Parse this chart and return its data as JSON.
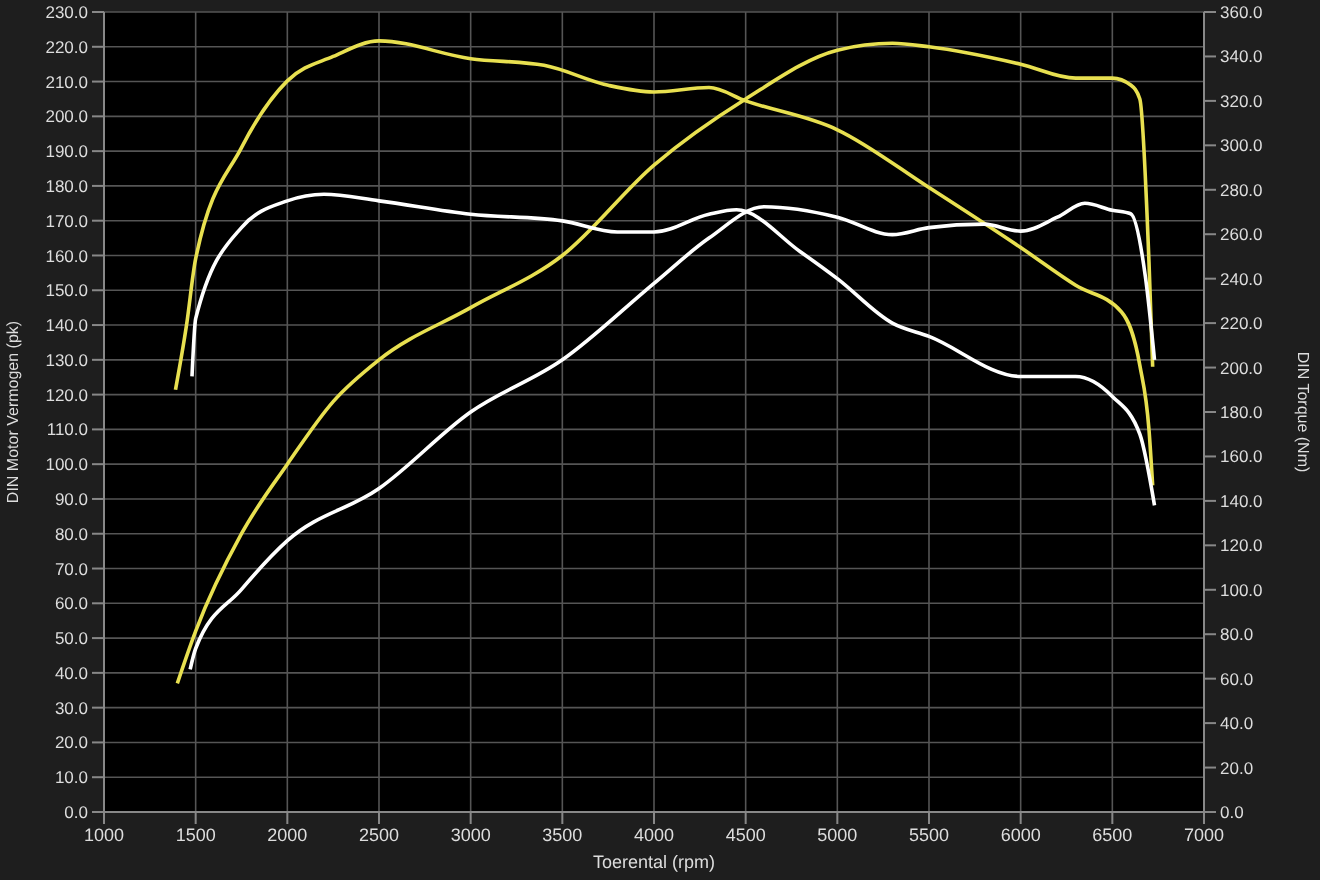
{
  "chart_data": {
    "type": "line",
    "xlabel": "Toerental (rpm)",
    "ylabel": "DIN Motor Vermogen (pk)",
    "y2label": "DIN Torque (Nm)",
    "grid": true,
    "marker": "none",
    "line_style": "solid",
    "xlim": [
      1000,
      7000
    ],
    "xticks": [
      1000,
      1500,
      2000,
      2500,
      3000,
      3500,
      4000,
      4500,
      5000,
      5500,
      6000,
      6500,
      7000
    ],
    "ylim": [
      0,
      230
    ],
    "yticks": [
      {
        "value": 0,
        "label": "0.0"
      },
      {
        "value": 10,
        "label": "10.0"
      },
      {
        "value": 20,
        "label": "20.0"
      },
      {
        "value": 30,
        "label": "30.0"
      },
      {
        "value": 40,
        "label": "40.0"
      },
      {
        "value": 50,
        "label": "50.0"
      },
      {
        "value": 60,
        "label": "60.0"
      },
      {
        "value": 70,
        "label": "70.0"
      },
      {
        "value": 80,
        "label": "80.0"
      },
      {
        "value": 90,
        "label": "90.0"
      },
      {
        "value": 100,
        "label": "100.0"
      },
      {
        "value": 110,
        "label": "110.0"
      },
      {
        "value": 120,
        "label": "120.0"
      },
      {
        "value": 130,
        "label": "130.0"
      },
      {
        "value": 140,
        "label": "140.0"
      },
      {
        "value": 150,
        "label": "150.0"
      },
      {
        "value": 160,
        "label": "160.0"
      },
      {
        "value": 170,
        "label": "170.0"
      },
      {
        "value": 180,
        "label": "180.0"
      },
      {
        "value": 190,
        "label": "190.0"
      },
      {
        "value": 200,
        "label": "200.0"
      },
      {
        "value": 210,
        "label": "210.0"
      },
      {
        "value": 220,
        "label": "220.0"
      },
      {
        "value": 230,
        "label": "230.0"
      }
    ],
    "y2lim": [
      0,
      360
    ],
    "y2ticks": [
      {
        "value": 0,
        "label": "0.0"
      },
      {
        "value": 20,
        "label": "20.0"
      },
      {
        "value": 40,
        "label": "40.0"
      },
      {
        "value": 60,
        "label": "60.0"
      },
      {
        "value": 80,
        "label": "80.0"
      },
      {
        "value": 100,
        "label": "100.0"
      },
      {
        "value": 120,
        "label": "120.0"
      },
      {
        "value": 140,
        "label": "140.0"
      },
      {
        "value": 160,
        "label": "160.0"
      },
      {
        "value": 180,
        "label": "180.0"
      },
      {
        "value": 200,
        "label": "200.0"
      },
      {
        "value": 220,
        "label": "220.0"
      },
      {
        "value": 240,
        "label": "240.0"
      },
      {
        "value": 260,
        "label": "260.0"
      },
      {
        "value": 280,
        "label": "280.0"
      },
      {
        "value": 300,
        "label": "300.0"
      },
      {
        "value": 320,
        "label": "320.0"
      },
      {
        "value": 340,
        "label": "340.0"
      },
      {
        "value": 360,
        "label": "360.0"
      }
    ],
    "series": [
      {
        "color": "#e8e050",
        "x": [
          1400,
          1500,
          1750,
          2000,
          2250,
          2500,
          3000,
          3500,
          4000,
          4500,
          5000,
          5300,
          5500,
          6000,
          6300,
          6500,
          6600,
          6650,
          6700,
          6720
        ],
        "values": [
          37,
          52,
          80,
          100,
          118,
          130,
          145,
          160,
          186,
          205,
          219,
          221,
          220,
          215,
          211,
          211,
          209,
          205,
          158,
          128
        ]
      },
      {
        "color": "#e8e050",
        "axis": "y2",
        "x": [
          1390,
          1450,
          1500,
          1750,
          2000,
          2250,
          2500,
          3000,
          3400,
          3750,
          4000,
          4300,
          4500,
          5000,
          5500,
          6000,
          6300,
          6550,
          6650,
          6700,
          6720
        ],
        "values": [
          190,
          219,
          249,
          299,
          329,
          340,
          347,
          339,
          336,
          327,
          324,
          326,
          320,
          307,
          281,
          254,
          237,
          225,
          201,
          172,
          147
        ]
      },
      {
        "color": "#ffffff",
        "x": [
          1470,
          1500,
          1750,
          2000,
          2500,
          3000,
          3500,
          4000,
          4300,
          4600,
          5000,
          5300,
          5500,
          5800,
          6000,
          6200,
          6350,
          6500,
          6600,
          6680,
          6730
        ],
        "values": [
          41,
          47,
          64,
          78,
          93,
          115,
          130,
          152,
          165,
          174,
          171,
          166,
          168,
          169,
          167,
          171,
          175,
          173,
          172,
          154,
          130
        ]
      },
      {
        "color": "#ffffff",
        "axis": "y2",
        "x": [
          1480,
          1500,
          1750,
          2000,
          2200,
          2500,
          3000,
          3500,
          3800,
          4000,
          4300,
          4450,
          4800,
          5000,
          5300,
          5500,
          6000,
          6300,
          6500,
          6650,
          6730
        ],
        "values": [
          196,
          222,
          263,
          275,
          278,
          275,
          269,
          266,
          261,
          261,
          269,
          271,
          252,
          240,
          220,
          214,
          196,
          196,
          187,
          170,
          138
        ]
      }
    ]
  }
}
